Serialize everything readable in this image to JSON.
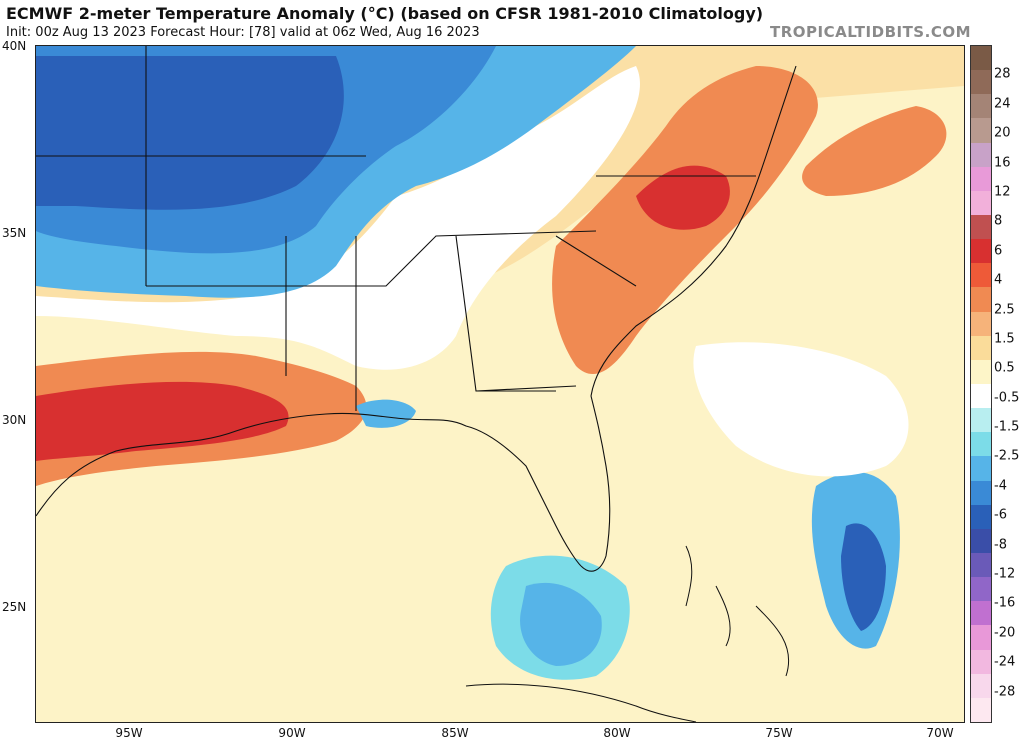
{
  "header": {
    "title": "ECMWF 2-meter Temperature Anomaly (°C) (based on CFSR 1981-2010 Climatology)",
    "subtitle": "Init: 00z Aug 13 2023   Forecast Hour: [78]   valid at 06z Wed, Aug 16 2023",
    "brand": "TROPICALTIDBITS.COM"
  },
  "map": {
    "lat_labels": [
      "40N",
      "35N",
      "30N",
      "25N"
    ],
    "lon_labels": [
      "95W",
      "90W",
      "85W",
      "80W",
      "75W",
      "70W"
    ]
  },
  "colorbar": {
    "labels": [
      "28",
      "24",
      "20",
      "16",
      "12",
      "8",
      "6",
      "4",
      "2.5",
      "1.5",
      "0.5",
      "-0.5",
      "-1.5",
      "-2.5",
      "-4",
      "-6",
      "-8",
      "-12",
      "-16",
      "-20",
      "-24",
      "-28"
    ],
    "colors": [
      "#7a5a46",
      "#8f6a58",
      "#a48476",
      "#b89a8f",
      "#c8a2c8",
      "#e89ad8",
      "#f2b0da",
      "#c05050",
      "#d83030",
      "#ee5a38",
      "#f08a52",
      "#f6b37a",
      "#fadc9a",
      "#fdf5c8",
      "#ffffff",
      "#b8eef0",
      "#7cdce8",
      "#56b4e8",
      "#3a8ad6",
      "#2a60b8",
      "#3a4ea8",
      "#6a5ab8",
      "#9066c8",
      "#c070d0",
      "#e898d8",
      "#f2b8e0",
      "#f8d8ec",
      "#fde8f0"
    ]
  }
}
